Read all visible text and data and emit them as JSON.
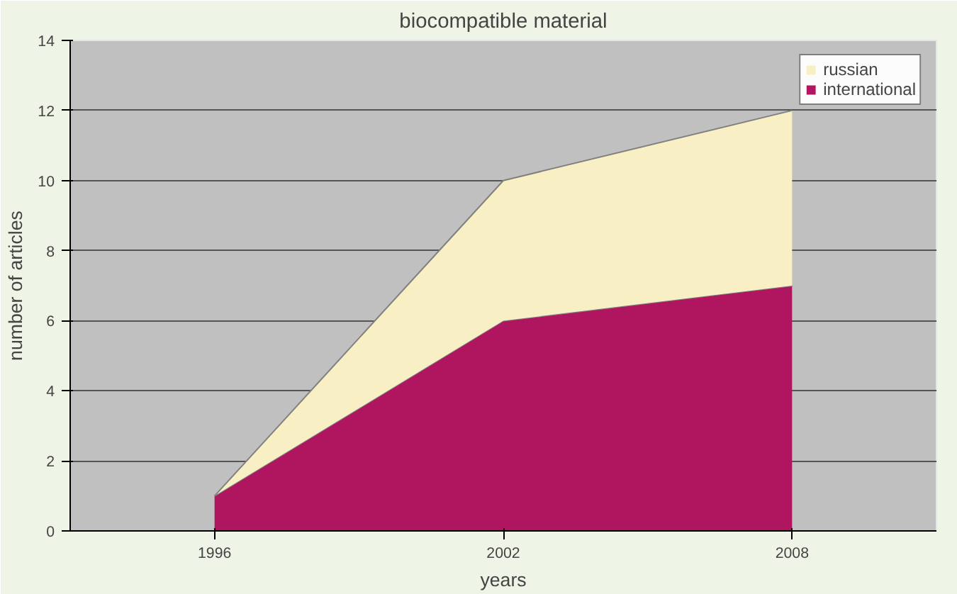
{
  "chart_data": {
    "type": "area",
    "title": "biocompatible material",
    "xlabel": "years",
    "ylabel": "number of articles",
    "categories": [
      "1996",
      "2002",
      "2008"
    ],
    "stacked": true,
    "series": [
      {
        "name": "international",
        "color": "#b0155f",
        "values": [
          1,
          6,
          7
        ]
      },
      {
        "name": "russian",
        "color": "#f8f0c4",
        "values": [
          0,
          4,
          5
        ]
      }
    ],
    "ylim": [
      0,
      14
    ],
    "yticks": [
      0,
      2,
      4,
      6,
      8,
      10,
      12,
      14
    ],
    "grid": "y",
    "legend": "top right"
  }
}
